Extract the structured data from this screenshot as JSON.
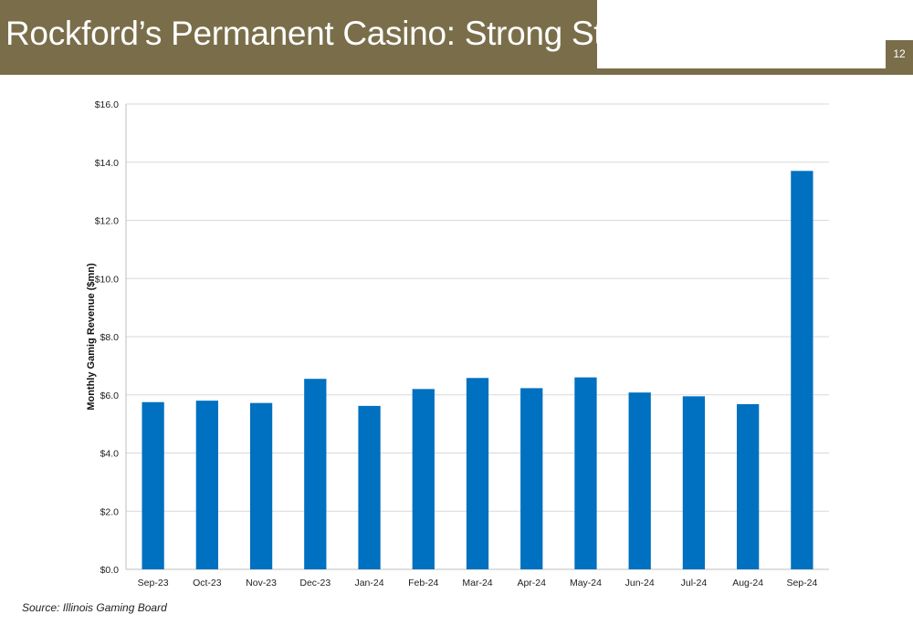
{
  "slide": {
    "title": "Rockford’s Permanent Casino: Strong Start",
    "page_number": "12",
    "source": "Source: Illinois Gaming Board"
  },
  "colors": {
    "header_band": "#7a6e4a",
    "bar": "#0070c0",
    "gridline": "#d9d9d9"
  },
  "chart_data": {
    "type": "bar",
    "title": "",
    "xlabel": "",
    "ylabel": "Monthly Gamig Revenue ($mn)",
    "categories": [
      "Sep-23",
      "Oct-23",
      "Nov-23",
      "Dec-23",
      "Jan-24",
      "Feb-24",
      "Mar-24",
      "Apr-24",
      "May-24",
      "Jun-24",
      "Jul-24",
      "Aug-24",
      "Sep-24"
    ],
    "values": [
      5.75,
      5.8,
      5.72,
      6.55,
      5.62,
      6.2,
      6.58,
      6.23,
      6.6,
      6.08,
      5.95,
      5.68,
      13.7
    ],
    "ylim": [
      0,
      16
    ],
    "yticks": [
      0,
      2,
      4,
      6,
      8,
      10,
      12,
      14,
      16
    ],
    "ytick_labels": [
      "$0.0",
      "$2.0",
      "$4.0",
      "$6.0",
      "$8.0",
      "$10.0",
      "$12.0",
      "$14.0",
      "$16.0"
    ],
    "grid": true,
    "legend": "none"
  }
}
